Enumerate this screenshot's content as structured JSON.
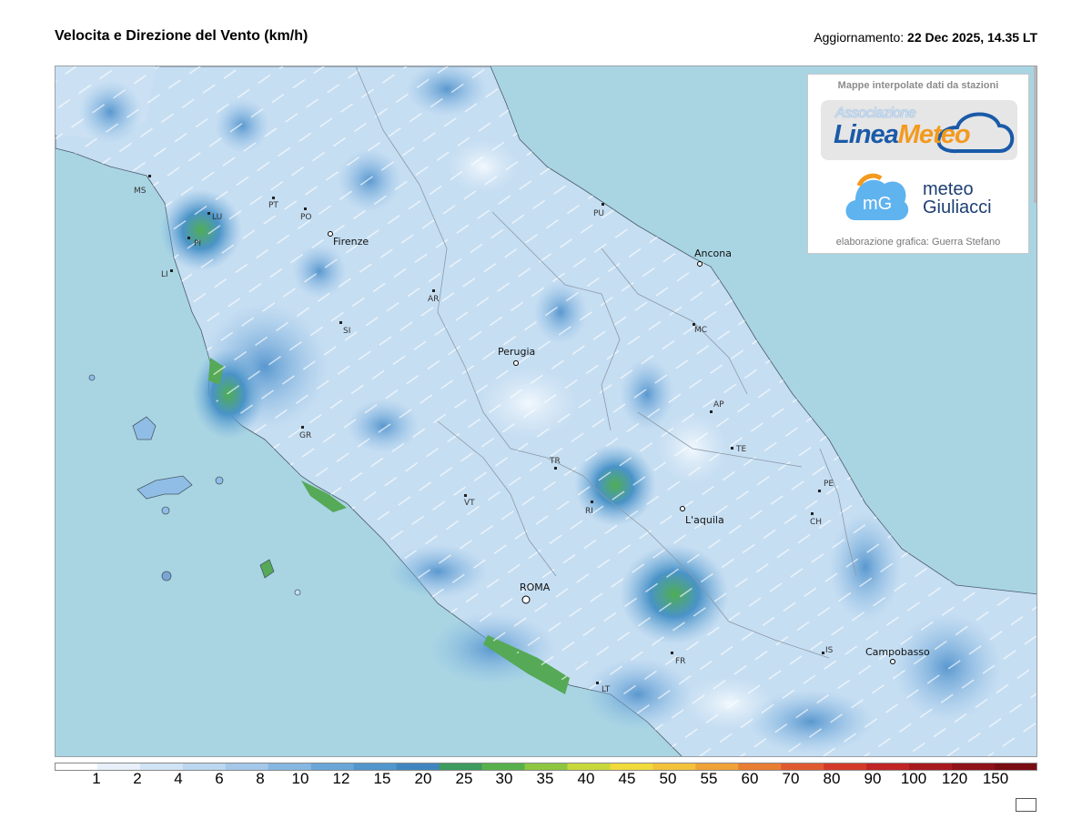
{
  "header": {
    "title": "Velocita e Direzione del Vento  (km/h)",
    "update_label": "Aggiornamento:",
    "update_value": "22 Dec 2025, 14.35 LT"
  },
  "logo_panel": {
    "heading": "Mappe interpolate dati da stazioni",
    "linea_assoc": "Associazione",
    "linea_name_1": "Linea",
    "linea_name_2": "Meteo",
    "mg_letters": "mG",
    "meteo_line1": "meteo",
    "meteo_line2": "Giuliacci",
    "credit": "elaborazione grafica: Guerra Stefano"
  },
  "legend": {
    "labels": [
      "1",
      "2",
      "4",
      "6",
      "8",
      "10",
      "12",
      "15",
      "20",
      "25",
      "30",
      "35",
      "40",
      "45",
      "50",
      "55",
      "60",
      "70",
      "80",
      "90",
      "100",
      "120",
      "150"
    ],
    "colors": [
      "#ffffff",
      "#e8f1fb",
      "#d1e4f6",
      "#bcd7f0",
      "#a3c8ea",
      "#86b7e2",
      "#6aa6d8",
      "#5196cd",
      "#3f86c0",
      "#3c9b5f",
      "#57b14a",
      "#8ec641",
      "#c8d83a",
      "#f1da3b",
      "#f3c23a",
      "#f0a238",
      "#e87d33",
      "#e05a2f",
      "#d33a2a",
      "#c02424",
      "#a8191f",
      "#8f1218",
      "#7a0c13"
    ]
  },
  "map": {
    "cities": [
      {
        "name": "Firenze"
      },
      {
        "name": "Ancona"
      },
      {
        "name": "Perugia"
      },
      {
        "name": "L'aquila"
      },
      {
        "name": "ROMA"
      },
      {
        "name": "Campobasso"
      }
    ],
    "provinces": [
      "MS",
      "LU",
      "PI",
      "LI",
      "PT",
      "PO",
      "AR",
      "SI",
      "GR",
      "VT",
      "TR",
      "RI",
      "FR",
      "LT",
      "PU",
      "MC",
      "AP",
      "TE",
      "PE",
      "CH",
      "IS"
    ]
  }
}
